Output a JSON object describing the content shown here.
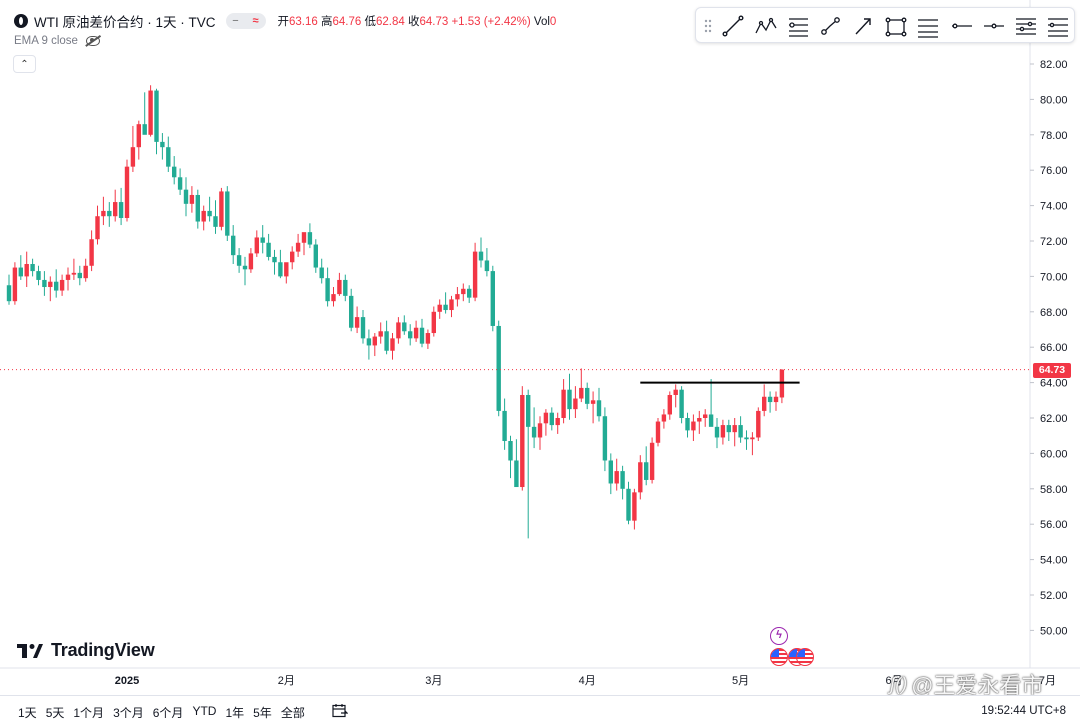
{
  "header": {
    "symbol_title": "WTI 原油差价合约 · 1天 · TVC",
    "pill_left": "−",
    "pill_right": "≈",
    "ohlc": [
      {
        "label": "开",
        "value": "63.16"
      },
      {
        "label": "高",
        "value": "64.76"
      },
      {
        "label": "低",
        "value": "62.84"
      },
      {
        "label": "收",
        "value": "64.73"
      }
    ],
    "change": "+1.53 (+2.42%)",
    "vol_label": "Vol",
    "vol_value": "0"
  },
  "indicator": {
    "label": "EMA 9 close"
  },
  "collapse_label": "⌃",
  "brand": {
    "name": "TradingView"
  },
  "last_price_label": "64.73",
  "bottom": {
    "ranges": [
      "1天",
      "5天",
      "1个月",
      "3个月",
      "6个月",
      "YTD",
      "1年",
      "5年",
      "全部"
    ],
    "clock": "19:52:44 UTC+8"
  },
  "watermark": {
    "logo": "ʃ()",
    "text": "@王爱永看市"
  },
  "events": {
    "flash_glyph": "ϟ"
  },
  "toolbar": {
    "icons": [
      "drag-handle-icon",
      "trend-line-icon",
      "xabcd-pattern-icon",
      "fib-retracement-icon",
      "path-icon",
      "arrow-icon",
      "rectangle-icon",
      "parallel-channel-icon",
      "horizontal-ray-icon",
      "horizontal-line-icon",
      "position-icon",
      "long-position-icon"
    ]
  },
  "colors": {
    "up": "#f23645",
    "down": "#22ab94",
    "text": "#131722",
    "grid": "#f0f3fa"
  },
  "chart_data": {
    "type": "candlestick",
    "title": "WTI 原油差价合约 · 1天 · TVC",
    "ylim": [
      49,
      83
    ],
    "y_ticks": [
      "82.00",
      "80.00",
      "78.00",
      "76.00",
      "74.00",
      "72.00",
      "70.00",
      "68.00",
      "66.00",
      "64.00",
      "62.00",
      "60.00",
      "58.00",
      "56.00",
      "54.00",
      "52.00",
      "50.00"
    ],
    "x_ticks": [
      "2025",
      "2月",
      "3月",
      "4月",
      "5月",
      "6月",
      "7月"
    ],
    "last_price": 64.73,
    "resistance_level": 64.0,
    "candles": [
      [
        69.5,
        70.1,
        68.4,
        68.6
      ],
      [
        68.6,
        70.8,
        68.4,
        70.5
      ],
      [
        70.5,
        71.2,
        69.8,
        70.0
      ],
      [
        70.0,
        71.4,
        69.4,
        70.7
      ],
      [
        70.7,
        71.0,
        70.0,
        70.3
      ],
      [
        70.3,
        70.6,
        69.5,
        69.8
      ],
      [
        69.8,
        70.3,
        68.9,
        69.4
      ],
      [
        69.4,
        70.0,
        68.6,
        69.7
      ],
      [
        69.7,
        70.4,
        68.8,
        69.2
      ],
      [
        69.2,
        70.1,
        68.9,
        69.8
      ],
      [
        69.8,
        70.5,
        69.2,
        70.1
      ],
      [
        70.1,
        71.0,
        69.8,
        70.2
      ],
      [
        70.2,
        70.6,
        69.5,
        69.9
      ],
      [
        69.9,
        71.0,
        69.7,
        70.6
      ],
      [
        70.6,
        72.6,
        70.3,
        72.1
      ],
      [
        72.1,
        74.0,
        71.8,
        73.4
      ],
      [
        73.4,
        74.5,
        72.9,
        73.7
      ],
      [
        73.7,
        74.2,
        72.8,
        73.4
      ],
      [
        73.4,
        74.9,
        73.1,
        74.2
      ],
      [
        74.2,
        75.0,
        72.9,
        73.3
      ],
      [
        73.3,
        76.6,
        73.1,
        76.2
      ],
      [
        76.2,
        78.5,
        75.9,
        77.3
      ],
      [
        77.3,
        78.8,
        76.6,
        78.6
      ],
      [
        78.6,
        80.4,
        78.1,
        78.0
      ],
      [
        78.0,
        80.8,
        77.9,
        80.5
      ],
      [
        80.5,
        80.6,
        76.9,
        77.6
      ],
      [
        77.6,
        78.1,
        76.6,
        77.3
      ],
      [
        77.3,
        77.9,
        75.9,
        76.2
      ],
      [
        76.2,
        76.8,
        75.2,
        75.6
      ],
      [
        75.6,
        76.1,
        74.6,
        74.9
      ],
      [
        74.9,
        75.6,
        73.4,
        74.1
      ],
      [
        74.1,
        75.1,
        73.6,
        74.6
      ],
      [
        74.6,
        74.9,
        72.7,
        73.1
      ],
      [
        73.1,
        74.0,
        72.6,
        73.7
      ],
      [
        73.7,
        74.5,
        73.1,
        73.4
      ],
      [
        73.4,
        74.3,
        72.4,
        72.8
      ],
      [
        72.8,
        75.0,
        72.6,
        74.8
      ],
      [
        74.8,
        75.1,
        72.0,
        72.3
      ],
      [
        72.3,
        72.9,
        70.7,
        71.2
      ],
      [
        71.2,
        71.6,
        70.2,
        70.6
      ],
      [
        70.6,
        71.1,
        69.5,
        70.4
      ],
      [
        70.4,
        71.6,
        70.2,
        71.3
      ],
      [
        71.3,
        72.6,
        71.1,
        72.2
      ],
      [
        72.2,
        72.9,
        71.3,
        71.9
      ],
      [
        71.9,
        72.4,
        70.9,
        71.1
      ],
      [
        71.1,
        71.5,
        70.1,
        70.8
      ],
      [
        70.8,
        71.5,
        69.9,
        70.0
      ],
      [
        70.0,
        70.6,
        69.6,
        70.8
      ],
      [
        70.8,
        71.7,
        70.4,
        71.4
      ],
      [
        71.4,
        72.4,
        71.1,
        71.9
      ],
      [
        71.9,
        72.2,
        71.2,
        72.5
      ],
      [
        72.5,
        73.0,
        71.6,
        71.8
      ],
      [
        71.8,
        72.1,
        70.2,
        70.5
      ],
      [
        70.5,
        71.0,
        69.6,
        69.9
      ],
      [
        69.9,
        70.5,
        68.3,
        68.6
      ],
      [
        68.6,
        69.4,
        68.3,
        69.0
      ],
      [
        69.0,
        70.2,
        68.9,
        69.8
      ],
      [
        69.8,
        70.1,
        68.6,
        68.9
      ],
      [
        68.9,
        69.3,
        66.9,
        67.1
      ],
      [
        67.1,
        68.3,
        66.8,
        67.7
      ],
      [
        67.7,
        68.1,
        66.2,
        66.5
      ],
      [
        66.5,
        67.0,
        65.3,
        66.1
      ],
      [
        66.1,
        66.8,
        65.5,
        66.6
      ],
      [
        66.6,
        67.4,
        66.2,
        66.9
      ],
      [
        66.9,
        67.5,
        65.6,
        65.8
      ],
      [
        65.8,
        66.8,
        65.3,
        66.5
      ],
      [
        66.5,
        67.7,
        66.2,
        67.4
      ],
      [
        67.4,
        67.8,
        66.7,
        66.9
      ],
      [
        66.9,
        67.3,
        66.1,
        66.5
      ],
      [
        66.5,
        67.5,
        66.3,
        67.1
      ],
      [
        67.1,
        67.6,
        66.0,
        66.2
      ],
      [
        66.2,
        67.0,
        65.9,
        66.8
      ],
      [
        66.8,
        68.3,
        66.6,
        68.0
      ],
      [
        68.0,
        68.7,
        67.6,
        68.4
      ],
      [
        68.4,
        69.1,
        67.9,
        68.1
      ],
      [
        68.1,
        68.9,
        67.7,
        68.7
      ],
      [
        68.7,
        69.4,
        68.3,
        69.0
      ],
      [
        69.0,
        69.6,
        68.6,
        69.3
      ],
      [
        69.3,
        69.5,
        68.5,
        68.8
      ],
      [
        68.8,
        71.9,
        68.6,
        71.4
      ],
      [
        71.4,
        72.2,
        70.5,
        70.9
      ],
      [
        70.9,
        71.6,
        70.0,
        70.3
      ],
      [
        70.3,
        70.6,
        66.9,
        67.2
      ],
      [
        67.2,
        67.5,
        62.1,
        62.4
      ],
      [
        62.4,
        63.1,
        60.2,
        60.7
      ],
      [
        60.7,
        61.0,
        58.6,
        59.6
      ],
      [
        59.6,
        60.8,
        58.3,
        58.1
      ],
      [
        58.1,
        63.8,
        57.9,
        63.3
      ],
      [
        63.3,
        63.6,
        55.2,
        61.5
      ],
      [
        61.5,
        62.6,
        60.3,
        60.9
      ],
      [
        60.9,
        62.1,
        60.2,
        61.7
      ],
      [
        61.7,
        62.5,
        61.0,
        62.3
      ],
      [
        62.3,
        62.6,
        61.3,
        61.6
      ],
      [
        61.6,
        62.3,
        61.1,
        62.0
      ],
      [
        62.0,
        64.2,
        61.7,
        63.6
      ],
      [
        63.6,
        64.5,
        61.9,
        62.5
      ],
      [
        62.5,
        63.8,
        62.0,
        63.1
      ],
      [
        63.1,
        64.8,
        62.9,
        63.7
      ],
      [
        63.7,
        64.0,
        62.5,
        62.8
      ],
      [
        62.8,
        63.5,
        61.7,
        63.0
      ],
      [
        63.0,
        63.7,
        61.8,
        62.1
      ],
      [
        62.1,
        62.6,
        59.0,
        59.6
      ],
      [
        59.6,
        60.0,
        57.7,
        58.3
      ],
      [
        58.3,
        59.7,
        57.9,
        59.0
      ],
      [
        59.0,
        59.3,
        57.4,
        58.0
      ],
      [
        58.0,
        58.4,
        56.0,
        56.2
      ],
      [
        56.2,
        58.0,
        55.7,
        57.8
      ],
      [
        57.8,
        59.9,
        57.4,
        59.5
      ],
      [
        59.5,
        60.4,
        58.2,
        58.5
      ],
      [
        58.5,
        60.9,
        58.3,
        60.6
      ],
      [
        60.6,
        62.0,
        60.4,
        61.8
      ],
      [
        61.8,
        62.5,
        61.4,
        62.2
      ],
      [
        62.2,
        63.5,
        61.9,
        63.3
      ],
      [
        63.3,
        63.9,
        62.6,
        63.6
      ],
      [
        63.6,
        63.8,
        61.7,
        62.0
      ],
      [
        62.0,
        62.3,
        60.9,
        61.3
      ],
      [
        61.3,
        62.2,
        60.7,
        61.8
      ],
      [
        61.8,
        62.4,
        61.1,
        62.0
      ],
      [
        62.0,
        62.5,
        61.5,
        62.2
      ],
      [
        62.2,
        64.2,
        61.8,
        61.5
      ],
      [
        61.5,
        62.0,
        60.3,
        60.9
      ],
      [
        60.9,
        61.9,
        60.5,
        61.6
      ],
      [
        61.6,
        61.9,
        60.7,
        61.2
      ],
      [
        61.2,
        62.0,
        60.4,
        61.6
      ],
      [
        61.6,
        62.1,
        60.6,
        60.9
      ],
      [
        60.9,
        61.3,
        60.2,
        60.8
      ],
      [
        60.8,
        61.2,
        59.9,
        60.9
      ],
      [
        60.9,
        62.6,
        60.7,
        62.4
      ],
      [
        62.4,
        63.9,
        62.1,
        63.2
      ],
      [
        63.2,
        63.5,
        62.3,
        62.9
      ],
      [
        62.9,
        63.5,
        62.4,
        63.2
      ],
      [
        63.16,
        64.76,
        62.84,
        64.73
      ]
    ]
  }
}
